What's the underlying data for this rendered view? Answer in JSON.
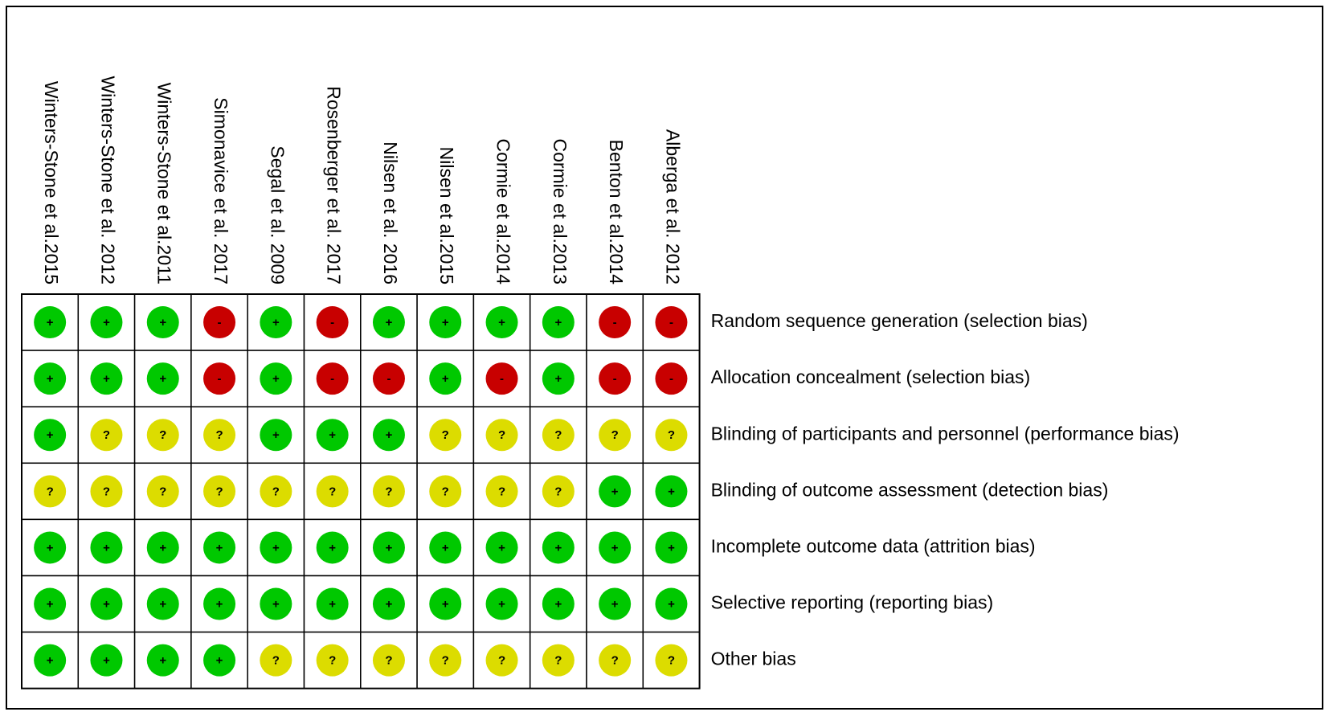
{
  "studies": [
    "Winters-Stone et al.2015",
    "Winters-Stone et al. 2012",
    "Winters-Stone et al.2011",
    "Simonavice et al. 2017",
    "Segal et al. 2009",
    "Rosenberger et al. 2017",
    "Nilsen et al. 2016",
    "Nilsen et al.2015",
    "Cormie et al.2014",
    "Cormie et al.2013",
    "Benton et al.2014",
    "Alberga et al. 2012"
  ],
  "domains": [
    "Random sequence generation (selection bias)",
    "Allocation concealment (selection bias)",
    "Blinding of participants and personnel (performance bias)",
    "Blinding of outcome assessment (detection bias)",
    "Incomplete outcome data (attrition bias)",
    "Selective reporting (reporting bias)",
    "Other bias"
  ],
  "judgments": [
    [
      "+",
      "+",
      "+",
      "-",
      "+",
      "-",
      "+",
      "+",
      "+",
      "+",
      "-",
      "-"
    ],
    [
      "+",
      "+",
      "+",
      "-",
      "+",
      "-",
      "-",
      "+",
      "-",
      "+",
      "-",
      "-"
    ],
    [
      "+",
      "?",
      "?",
      "?",
      "+",
      "+",
      "+",
      "?",
      "?",
      "?",
      "?",
      "?"
    ],
    [
      "?",
      "?",
      "?",
      "?",
      "?",
      "?",
      "?",
      "?",
      "?",
      "?",
      "+",
      "+"
    ],
    [
      "+",
      "+",
      "+",
      "+",
      "+",
      "+",
      "+",
      "+",
      "+",
      "+",
      "+",
      "+"
    ],
    [
      "+",
      "+",
      "+",
      "+",
      "+",
      "+",
      "+",
      "+",
      "+",
      "+",
      "+",
      "+"
    ],
    [
      "+",
      "+",
      "+",
      "+",
      "?",
      "?",
      "?",
      "?",
      "?",
      "?",
      "?",
      "?"
    ]
  ],
  "colors": {
    "+": "#00c800",
    "-": "#c80000",
    "?": "#dcdc00"
  }
}
